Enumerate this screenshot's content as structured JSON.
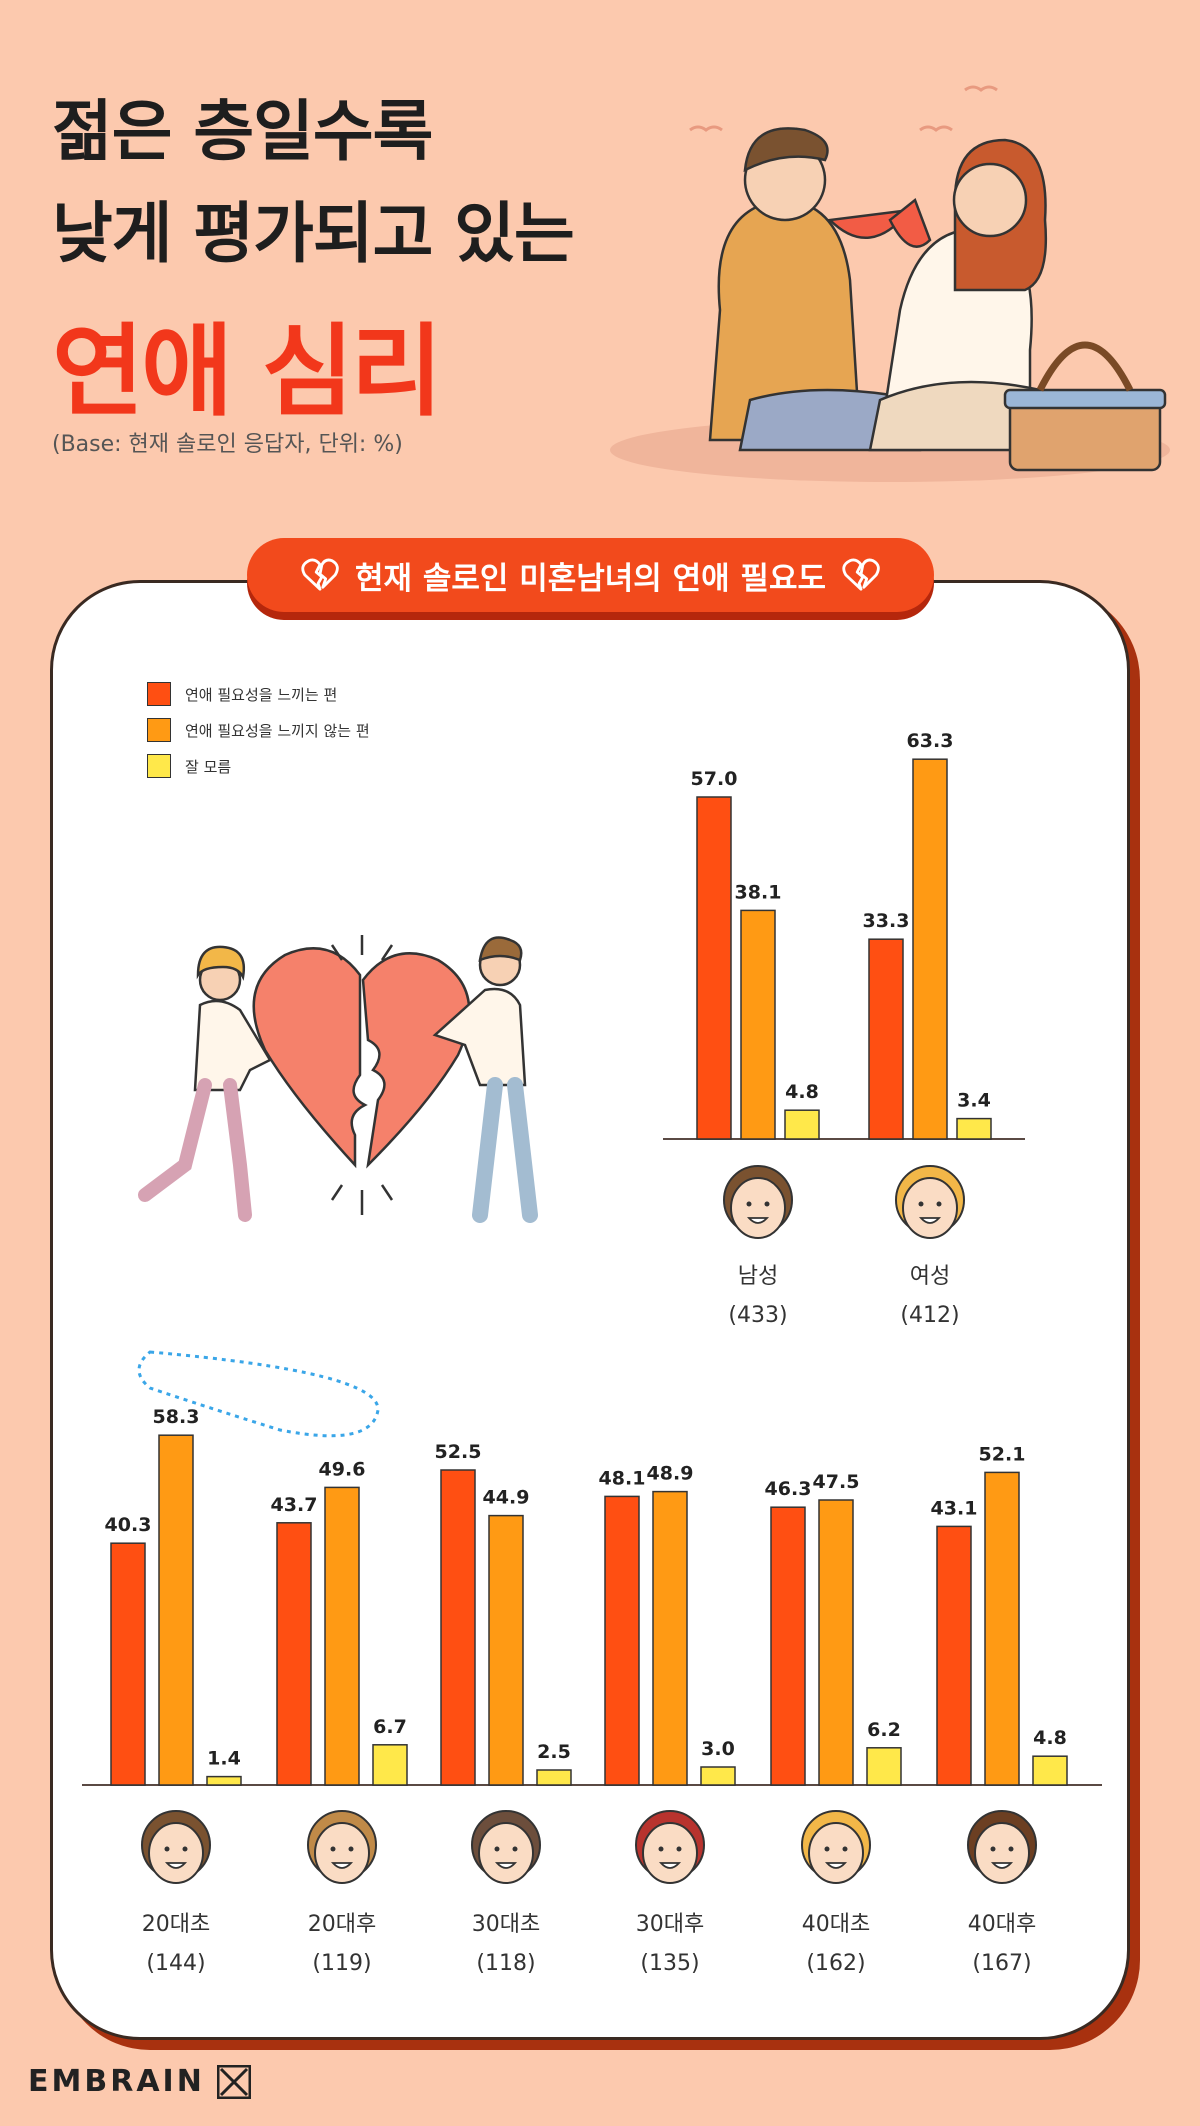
{
  "header": {
    "title_line1": "젊은 층일수록",
    "title_line2": "낮게 평가되고 있는",
    "title_line3": "연애 심리",
    "base_note": "(Base: 현재 솔로인 응답자, 단위: %)"
  },
  "banner": {
    "label": "현재 솔로인 미혼남녀의 연애 필요도"
  },
  "legend": [
    {
      "label": "연애 필요성을 느끼는 편",
      "color": "#FF4F12"
    },
    {
      "label": "연애 필요성을 느끼지 않는 편",
      "color": "#FF9A14"
    },
    {
      "label": "잘 모름",
      "color": "#FFE84A"
    }
  ],
  "logo": {
    "text": "EMBRAIN"
  },
  "chart_data": [
    {
      "type": "bar",
      "categories": [
        "남성",
        "여성"
      ],
      "sample_sizes": [
        "(433)",
        "(412)"
      ],
      "series": [
        {
          "name": "연애 필요성을 느끼는 편",
          "values": [
            57.0,
            33.3
          ]
        },
        {
          "name": "연애 필요성을 느끼지 않는 편",
          "values": [
            38.1,
            63.3
          ]
        },
        {
          "name": "잘 모름",
          "values": [
            4.8,
            3.4
          ]
        }
      ],
      "value_labels": [
        [
          "57.0",
          "33.3"
        ],
        [
          "38.1",
          "63.3"
        ],
        [
          "4.8",
          "3.4"
        ]
      ]
    },
    {
      "type": "bar",
      "categories": [
        "20대초",
        "20대후",
        "30대초",
        "30대후",
        "40대초",
        "40대후"
      ],
      "sample_sizes": [
        "(144)",
        "(119)",
        "(118)",
        "(135)",
        "(162)",
        "(167)"
      ],
      "series": [
        {
          "name": "연애 필요성을 느끼는 편",
          "values": [
            40.3,
            43.7,
            52.5,
            48.1,
            46.3,
            43.1
          ]
        },
        {
          "name": "연애 필요성을 느끼지 않는 편",
          "values": [
            58.3,
            49.6,
            44.9,
            48.9,
            47.5,
            52.1
          ]
        },
        {
          "name": "잘 모름",
          "values": [
            1.4,
            6.7,
            2.5,
            3.0,
            6.2,
            4.8
          ]
        }
      ],
      "value_labels": [
        [
          "40.3",
          "43.7",
          "52.5",
          "48.1",
          "46.3",
          "43.1"
        ],
        [
          "58.3",
          "49.6",
          "44.9",
          "48.9",
          "47.5",
          "52.1"
        ],
        [
          "1.4",
          "6.7",
          "2.5",
          "3.0",
          "6.2",
          "4.8"
        ]
      ]
    }
  ]
}
